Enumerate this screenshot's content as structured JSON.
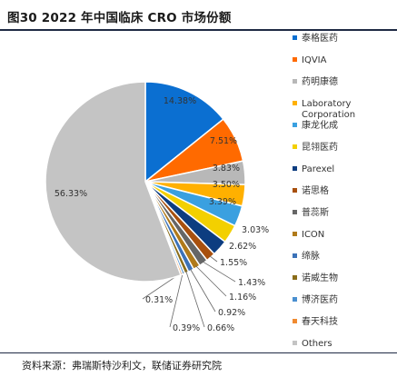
{
  "header": {
    "title": "图30 2022 年中国临床 CRO 市场份额"
  },
  "footer": {
    "source": "资料来源：弗瑞斯特沙利文，联储证券研究院"
  },
  "chart_data": {
    "type": "pie",
    "title": "图30 2022 年中国临床 CRO 市场份额",
    "legend_position": "right",
    "slices": [
      {
        "label": "泰格医药",
        "value_label": "14.38%",
        "value": 14.38,
        "color": "#0b6fd1"
      },
      {
        "label": "IQVIA",
        "value_label": "7.51%",
        "value": 7.51,
        "color": "#ff6a00"
      },
      {
        "label": "药明康德",
        "value_label": "3.83%",
        "value": 3.83,
        "color": "#b8b8b8"
      },
      {
        "label": "Laboratory Corporation",
        "value_label": "3.50%",
        "value": 3.5,
        "color": "#ffb000"
      },
      {
        "label": "康龙化成",
        "value_label": "3.39%",
        "value": 3.39,
        "color": "#3aa0e0"
      },
      {
        "label": "昆翎医药",
        "value_label": "3.03%",
        "value": 3.03,
        "color": "#f3d000"
      },
      {
        "label": "Parexel",
        "value_label": "2.62%",
        "value": 2.62,
        "color": "#0d3d80"
      },
      {
        "label": "诺思格",
        "value_label": "1.55%",
        "value": 1.55,
        "color": "#a8500e"
      },
      {
        "label": "普蕊斯",
        "value_label": "1.43%",
        "value": 1.43,
        "color": "#666666"
      },
      {
        "label": "ICON",
        "value_label": "1.16%",
        "value": 1.16,
        "color": "#b07a1a"
      },
      {
        "label": "缔脉",
        "value_label": "0.92%",
        "value": 0.92,
        "color": "#3b72b8"
      },
      {
        "label": "诺威生物",
        "value_label": "0.66%",
        "value": 0.66,
        "color": "#8a6d1a"
      },
      {
        "label": "博济医药",
        "value_label": "0.39%",
        "value": 0.39,
        "color": "#4a8fd0"
      },
      {
        "label": "春天科技",
        "value_label": "0.31%",
        "value": 0.31,
        "color": "#f08a30"
      },
      {
        "label": "Others",
        "value_label": "56.33%",
        "value": 56.33,
        "color": "#c4c4c4"
      }
    ]
  }
}
